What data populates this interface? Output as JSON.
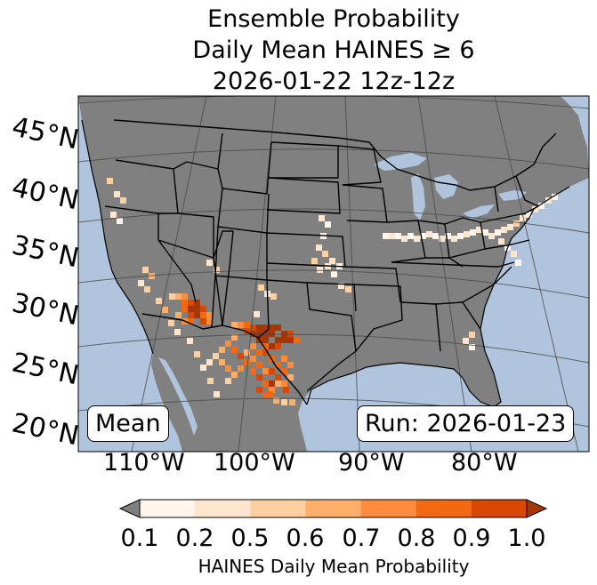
{
  "title": {
    "line1": "Ensemble Probability",
    "line2": "Daily Mean HAINES ≥ 6",
    "line3": "2026-01-22 12z-12z"
  },
  "map": {
    "lat_labels": [
      "45°N",
      "40°N",
      "35°N",
      "30°N",
      "25°N",
      "20°N"
    ],
    "lon_labels": [
      "110°W",
      "100°W",
      "90°W",
      "80°W"
    ],
    "mean_label": "Mean",
    "run_label": "Run: 2026-01-23",
    "colors": {
      "ocean": "#b0c4de",
      "land": "#808080",
      "borders": "#000000"
    }
  },
  "colorbar": {
    "ticks": [
      "0.1",
      "0.2",
      "0.5",
      "0.6",
      "0.7",
      "0.8",
      "0.9",
      "1.0"
    ],
    "colors": [
      "#fff5eb",
      "#fee6ce",
      "#fdd0a2",
      "#fdae6b",
      "#fd8d3c",
      "#f16913",
      "#d94801",
      "#a63603"
    ],
    "under_color": "#808080",
    "label": "HAINES Daily Mean Probability"
  }
}
